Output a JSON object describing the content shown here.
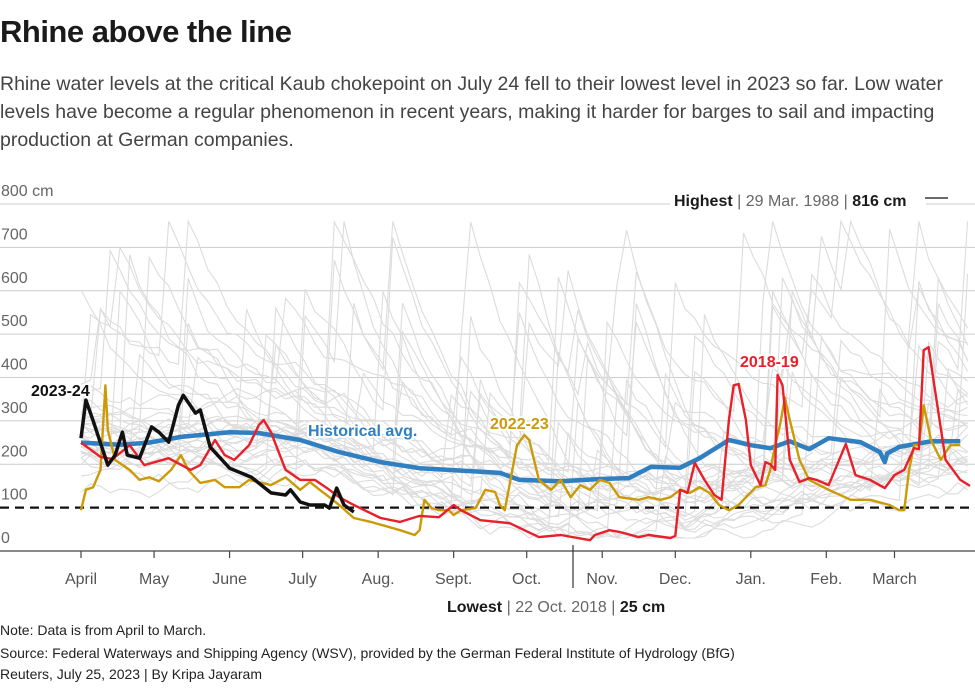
{
  "title": "Rhine above the line",
  "subtitle": "Rhine water levels at the critical Kaub chokepoint on July 24 fell to their lowest level in 2023 so far. Low water levels have become a regular phenomenon in recent years, making it harder for barges to sail and impacting production at German companies.",
  "footer": {
    "note": "Note: Data is from April to March.",
    "source": "Source: Federal Waterways and Shipping Agency (WSV), provided by the German Federal Institute of Hydrology (BfG)",
    "credit": "Reuters, July 25, 2023 | By Kripa Jayaram"
  },
  "colors": {
    "series_2023_24": "#111111",
    "series_2022_23": "#cc9a06",
    "series_2018_19": "#e8202a",
    "historical_avg": "#2f7fc1",
    "other_years": "#dcdcdc",
    "grid": "#cccccc"
  },
  "chart_data": {
    "type": "line",
    "title": "Rhine above the line",
    "ylabel": "cm",
    "ylim": [
      0,
      800
    ],
    "y_ticks": [
      "0",
      "100",
      "200",
      "300",
      "400",
      "500",
      "600",
      "700",
      "800 cm"
    ],
    "y_tick_values": [
      0,
      100,
      200,
      300,
      400,
      500,
      600,
      700,
      800
    ],
    "x_unit": "day of season (from 1 April)",
    "x_ticks": [
      "April",
      "May",
      "June",
      "July",
      "Aug.",
      "Sept.",
      "Oct.",
      "Nov.",
      "Dec.",
      "Jan.",
      "Feb.",
      "March"
    ],
    "x_tick_days": [
      0,
      30,
      61,
      91,
      122,
      153,
      183,
      214,
      244,
      275,
      306,
      334
    ],
    "xlim": [
      0,
      365
    ],
    "grid": true,
    "critical_line": 100,
    "annotations": {
      "highest": {
        "label": "Highest",
        "date": "29 Mar. 1988",
        "value": "816 cm"
      },
      "lowest": {
        "label": "Lowest",
        "date": "22 Oct. 2018",
        "value": "25 cm"
      }
    },
    "series": [
      {
        "name": "Historical avg.",
        "key": "historical_avg",
        "x": [
          0,
          16,
          28,
          41,
          61,
          73,
          90,
          106,
          123,
          139,
          151,
          172,
          180,
          197,
          213,
          225,
          234,
          246,
          254,
          266,
          275,
          283,
          291,
          299,
          307,
          320,
          328,
          330,
          331,
          336,
          349,
          361
        ],
        "y": [
          250,
          245,
          250,
          263,
          274,
          272,
          256,
          228,
          205,
          191,
          187,
          180,
          164,
          161,
          166,
          168,
          194,
          192,
          214,
          256,
          244,
          237,
          253,
          235,
          260,
          251,
          228,
          205,
          225,
          240,
          253,
          253
        ]
      },
      {
        "name": "2023-24",
        "key": "series_2023_24",
        "x": [
          0,
          2,
          5,
          11,
          14,
          17,
          19,
          24,
          29,
          32,
          36,
          40,
          42,
          47,
          49,
          53,
          61,
          70,
          78,
          84,
          86,
          90,
          94,
          100,
          102,
          105,
          108,
          112
        ],
        "y": [
          260,
          348,
          300,
          198,
          221,
          274,
          221,
          214,
          286,
          274,
          251,
          336,
          359,
          318,
          325,
          240,
          191,
          170,
          134,
          129,
          141,
          113,
          106,
          106,
          99,
          145,
          106,
          90
        ]
      },
      {
        "name": "2022-23",
        "key": "series_2022_23",
        "x": [
          0,
          2,
          5,
          8,
          10,
          11,
          14,
          20,
          24,
          28,
          32,
          37,
          41,
          44,
          49,
          55,
          59,
          65,
          69,
          78,
          84,
          90,
          94,
          98,
          102,
          106,
          112,
          119,
          131,
          137,
          139,
          141,
          144,
          147,
          151,
          153,
          156,
          162,
          166,
          170,
          172,
          174,
          179,
          182,
          184,
          188,
          193,
          197,
          201,
          205,
          209,
          213,
          217,
          221,
          229,
          233,
          238,
          242,
          246,
          250,
          254,
          258,
          262,
          266,
          270,
          272,
          277,
          281,
          283,
          285,
          287,
          289,
          291,
          295,
          299,
          307,
          316,
          324,
          332,
          336,
          338,
          340,
          342,
          344,
          346,
          349,
          353,
          357,
          361
        ],
        "y": [
          94,
          141,
          147,
          187,
          382,
          279,
          210,
          187,
          164,
          170,
          161,
          187,
          221,
          187,
          157,
          164,
          147,
          147,
          164,
          152,
          170,
          141,
          159,
          141,
          124,
          106,
          76,
          67,
          48,
          37,
          48,
          118,
          99,
          94,
          94,
          83,
          94,
          99,
          141,
          136,
          106,
          94,
          244,
          267,
          256,
          164,
          141,
          164,
          124,
          152,
          141,
          164,
          157,
          124,
          118,
          124,
          118,
          124,
          141,
          134,
          147,
          134,
          106,
          94,
          106,
          118,
          147,
          152,
          187,
          244,
          290,
          353,
          302,
          210,
          164,
          141,
          118,
          118,
          106,
          94,
          94,
          187,
          244,
          244,
          336,
          256,
          210,
          244,
          244
        ]
      },
      {
        "name": "2018-19",
        "key": "series_2018_19",
        "x": [
          0,
          8,
          13,
          20,
          26,
          36,
          45,
          49,
          55,
          59,
          63,
          69,
          73,
          75,
          78,
          84,
          90,
          96,
          101,
          106,
          112,
          123,
          131,
          139,
          147,
          153,
          156,
          164,
          176,
          188,
          197,
          209,
          211,
          217,
          221,
          229,
          233,
          242,
          244,
          246,
          249,
          252,
          256,
          260,
          263,
          266,
          268,
          270,
          273,
          275,
          279,
          281,
          283,
          285,
          286,
          288,
          291,
          295,
          299,
          302,
          307,
          314,
          318,
          324,
          330,
          334,
          338,
          342,
          344,
          346,
          348,
          350,
          355,
          361,
          365
        ],
        "y": [
          250,
          217,
          212,
          244,
          198,
          214,
          187,
          198,
          256,
          221,
          210,
          244,
          290,
          302,
          274,
          187,
          164,
          164,
          145,
          124,
          106,
          76,
          67,
          81,
          78,
          106,
          94,
          71,
          64,
          32,
          37,
          25,
          37,
          48,
          44,
          32,
          37,
          30,
          35,
          141,
          134,
          203,
          164,
          129,
          118,
          302,
          382,
          385,
          302,
          198,
          152,
          205,
          200,
          187,
          406,
          382,
          210,
          159,
          168,
          164,
          152,
          247,
          175,
          164,
          145,
          175,
          187,
          237,
          235,
          463,
          470,
          394,
          210,
          164,
          150
        ]
      }
    ]
  }
}
